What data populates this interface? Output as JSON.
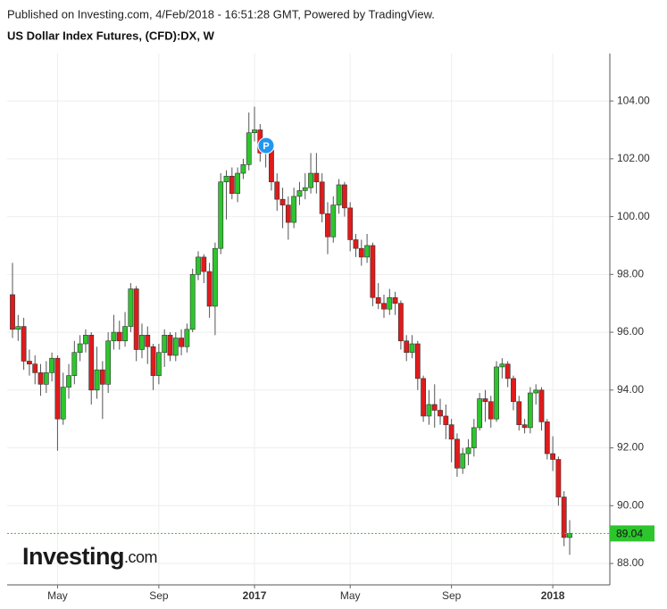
{
  "chart_data": {
    "type": "candlestick",
    "header": "Published on Investing.com, 4/Feb/2018 - 16:51:28 GMT, Powered by TradingView.",
    "title": "US Dollar Index Futures, (CFD):DX, W",
    "logo": {
      "name": "Investing",
      "suffix": ".com"
    },
    "marker_label": "P",
    "current_price": 89.04,
    "up_color": "#2dc52d",
    "down_color": "#e01b1b",
    "price_line_color": "#2dc52d",
    "grid": true,
    "categories": [
      null,
      null,
      null,
      null,
      null,
      null,
      null,
      null,
      "May",
      null,
      null,
      null,
      null,
      null,
      null,
      null,
      null,
      null,
      null,
      null,
      null,
      null,
      null,
      null,
      null,
      null,
      "Sep",
      null,
      null,
      null,
      null,
      null,
      null,
      null,
      null,
      null,
      null,
      null,
      null,
      null,
      null,
      null,
      null,
      "2017",
      null,
      null,
      null,
      null,
      null,
      null,
      null,
      null,
      null,
      null,
      null,
      null,
      null,
      null,
      null,
      null,
      "May",
      null,
      null,
      null,
      null,
      null,
      null,
      null,
      null,
      null,
      null,
      null,
      null,
      null,
      null,
      null,
      null,
      null,
      "Sep",
      null,
      null,
      null,
      null,
      null,
      null,
      null,
      null,
      null,
      null,
      null,
      null,
      null,
      null,
      null,
      null,
      null,
      "2018",
      null,
      null,
      null
    ],
    "open": [
      97.3,
      96.1,
      96.2,
      95.0,
      94.9,
      94.6,
      94.2,
      94.6,
      95.1,
      93.0,
      94.1,
      94.5,
      95.3,
      95.6,
      95.9,
      94.0,
      94.7,
      94.2,
      95.7,
      96.0,
      95.7,
      96.2,
      97.5,
      95.4,
      95.9,
      95.5,
      94.5,
      95.3,
      95.9,
      95.2,
      95.8,
      95.5,
      96.1,
      98.0,
      98.6,
      98.1,
      96.9,
      98.9,
      101.2,
      101.4,
      100.8,
      101.5,
      101.8,
      102.9,
      103.0,
      102.2,
      102.3,
      101.2,
      100.6,
      100.4,
      99.8,
      100.7,
      100.9,
      101.0,
      101.5,
      101.2,
      100.1,
      99.3,
      100.4,
      101.1,
      100.3,
      99.2,
      98.9,
      98.6,
      99.0,
      97.2,
      97.0,
      96.8,
      97.2,
      97.0,
      95.7,
      95.3,
      95.6,
      94.4,
      93.1,
      93.5,
      93.3,
      93.1,
      92.8,
      92.3,
      91.3,
      91.8,
      92.0,
      92.7,
      93.7,
      93.6,
      93.0,
      94.8,
      94.9,
      94.4,
      93.6,
      92.8,
      92.7,
      93.9,
      94.0,
      92.9,
      91.8,
      91.6,
      90.3,
      88.9
    ],
    "high": [
      98.4,
      96.6,
      96.5,
      95.4,
      95.2,
      94.9,
      95.0,
      95.3,
      95.2,
      94.6,
      94.9,
      95.7,
      95.9,
      96.1,
      96.0,
      95.5,
      95.0,
      96.0,
      96.6,
      96.4,
      96.7,
      97.7,
      97.6,
      96.3,
      96.2,
      95.6,
      95.6,
      96.1,
      96.0,
      96.0,
      96.1,
      96.3,
      98.2,
      98.8,
      98.7,
      98.4,
      99.1,
      101.5,
      101.6,
      101.7,
      101.7,
      102.0,
      103.6,
      103.8,
      103.2,
      102.7,
      102.6,
      101.5,
      101.0,
      100.7,
      101.0,
      101.2,
      101.5,
      102.2,
      102.2,
      101.5,
      100.5,
      100.7,
      101.3,
      101.2,
      100.5,
      99.4,
      99.2,
      99.4,
      99.1,
      97.7,
      97.3,
      97.5,
      97.4,
      97.1,
      95.9,
      95.9,
      95.7,
      94.5,
      94.0,
      94.2,
      93.7,
      93.5,
      93.0,
      92.5,
      92.0,
      92.3,
      93.0,
      93.9,
      94.0,
      93.8,
      95.0,
      95.1,
      95.0,
      94.5,
      93.8,
      93.0,
      94.1,
      94.2,
      94.1,
      93.0,
      92.4,
      91.7,
      90.5,
      89.5
    ],
    "low": [
      95.8,
      95.7,
      94.7,
      94.5,
      94.2,
      93.8,
      93.9,
      94.3,
      91.9,
      92.8,
      93.7,
      94.2,
      95.0,
      95.3,
      93.5,
      93.7,
      93.0,
      93.9,
      95.4,
      95.4,
      95.5,
      96.0,
      95.0,
      95.1,
      94.9,
      94.0,
      94.2,
      94.8,
      95.0,
      95.0,
      95.2,
      95.3,
      96.0,
      97.8,
      97.7,
      96.5,
      95.9,
      98.7,
      99.9,
      100.6,
      100.5,
      101.3,
      101.6,
      102.6,
      101.9,
      101.7,
      100.9,
      100.2,
      99.6,
      99.2,
      99.6,
      100.4,
      100.6,
      100.8,
      100.8,
      99.8,
      98.7,
      99.1,
      100.1,
      100.0,
      98.8,
      98.6,
      98.3,
      98.4,
      96.9,
      96.8,
      96.5,
      96.6,
      96.6,
      95.4,
      95.0,
      95.1,
      94.0,
      92.9,
      92.8,
      92.7,
      92.8,
      92.3,
      91.5,
      91.0,
      91.1,
      91.4,
      91.7,
      92.6,
      92.9,
      92.7,
      92.9,
      94.4,
      94.1,
      93.3,
      92.6,
      92.5,
      92.5,
      93.5,
      92.6,
      91.6,
      91.2,
      90.0,
      88.6,
      88.3
    ],
    "close": [
      96.1,
      96.2,
      95.0,
      94.9,
      94.6,
      94.2,
      94.6,
      95.1,
      93.0,
      94.1,
      94.5,
      95.3,
      95.6,
      95.9,
      94.0,
      94.7,
      94.2,
      95.7,
      96.0,
      95.7,
      96.2,
      97.5,
      95.4,
      95.9,
      95.5,
      94.5,
      95.3,
      95.9,
      95.2,
      95.8,
      95.5,
      96.1,
      98.0,
      98.6,
      98.1,
      96.9,
      98.9,
      101.2,
      101.4,
      100.8,
      101.5,
      101.8,
      102.9,
      103.0,
      102.2,
      102.3,
      101.2,
      100.6,
      100.4,
      99.8,
      100.7,
      100.9,
      101.0,
      101.5,
      101.2,
      100.1,
      99.3,
      100.4,
      101.1,
      100.3,
      99.2,
      98.9,
      98.6,
      99.0,
      97.2,
      97.0,
      96.8,
      97.2,
      97.0,
      95.7,
      95.3,
      95.6,
      94.4,
      93.1,
      93.5,
      93.3,
      93.1,
      92.8,
      92.3,
      91.3,
      91.8,
      92.0,
      92.7,
      93.7,
      93.6,
      93.0,
      94.8,
      94.9,
      94.4,
      93.6,
      92.8,
      92.7,
      93.9,
      94.0,
      92.9,
      91.8,
      91.6,
      90.3,
      88.9,
      89.04
    ],
    "ylim": [
      87.26,
      105.64
    ],
    "yticks": [
      {
        "value": 88,
        "label": "88.00"
      },
      {
        "value": 90,
        "label": "90.00"
      },
      {
        "value": 92,
        "label": "92.00"
      },
      {
        "value": 94,
        "label": "94.00"
      },
      {
        "value": 96,
        "label": "96.00"
      },
      {
        "value": 98,
        "label": "98.00"
      },
      {
        "value": 100,
        "label": "100.00"
      },
      {
        "value": 102,
        "label": "102.00"
      },
      {
        "value": 104,
        "label": "104.00"
      }
    ]
  }
}
